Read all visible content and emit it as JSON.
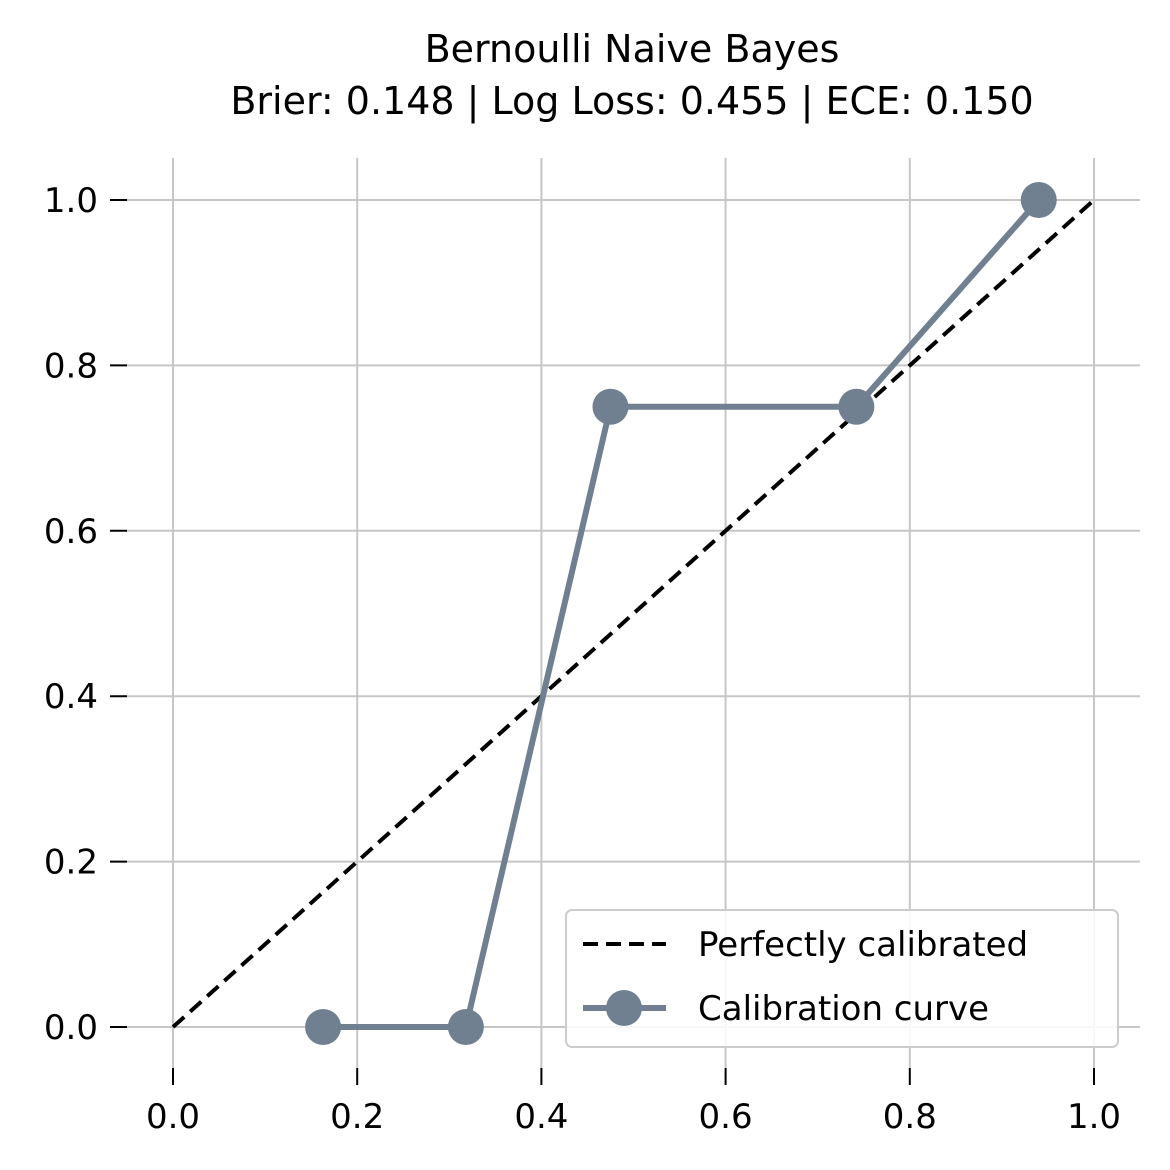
{
  "chart_data": {
    "type": "line",
    "title": "Bernoulli Naive Bayes",
    "subtitle": "Brier: 0.148 | Log Loss: 0.455 | ECE: 0.150",
    "xlabel": "",
    "ylabel": "",
    "xlim": [
      -0.05,
      1.05
    ],
    "ylim": [
      -0.05,
      1.05
    ],
    "xticks": [
      "0.0",
      "0.2",
      "0.4",
      "0.6",
      "0.8",
      "1.0"
    ],
    "yticks": [
      "0.0",
      "0.2",
      "0.4",
      "0.6",
      "0.8",
      "1.0"
    ],
    "grid": true,
    "legend_position": "lower-right",
    "series": [
      {
        "name": "Perfectly calibrated",
        "style": "dashed",
        "color": "#000000",
        "x": [
          0.0,
          1.0
        ],
        "y": [
          0.0,
          1.0
        ]
      },
      {
        "name": "Calibration curve",
        "style": "solid-with-markers",
        "color": "#708090",
        "x": [
          0.163,
          0.318,
          0.475,
          0.742,
          0.94
        ],
        "y": [
          0.0,
          0.0,
          0.75,
          0.75,
          1.0
        ]
      }
    ]
  }
}
